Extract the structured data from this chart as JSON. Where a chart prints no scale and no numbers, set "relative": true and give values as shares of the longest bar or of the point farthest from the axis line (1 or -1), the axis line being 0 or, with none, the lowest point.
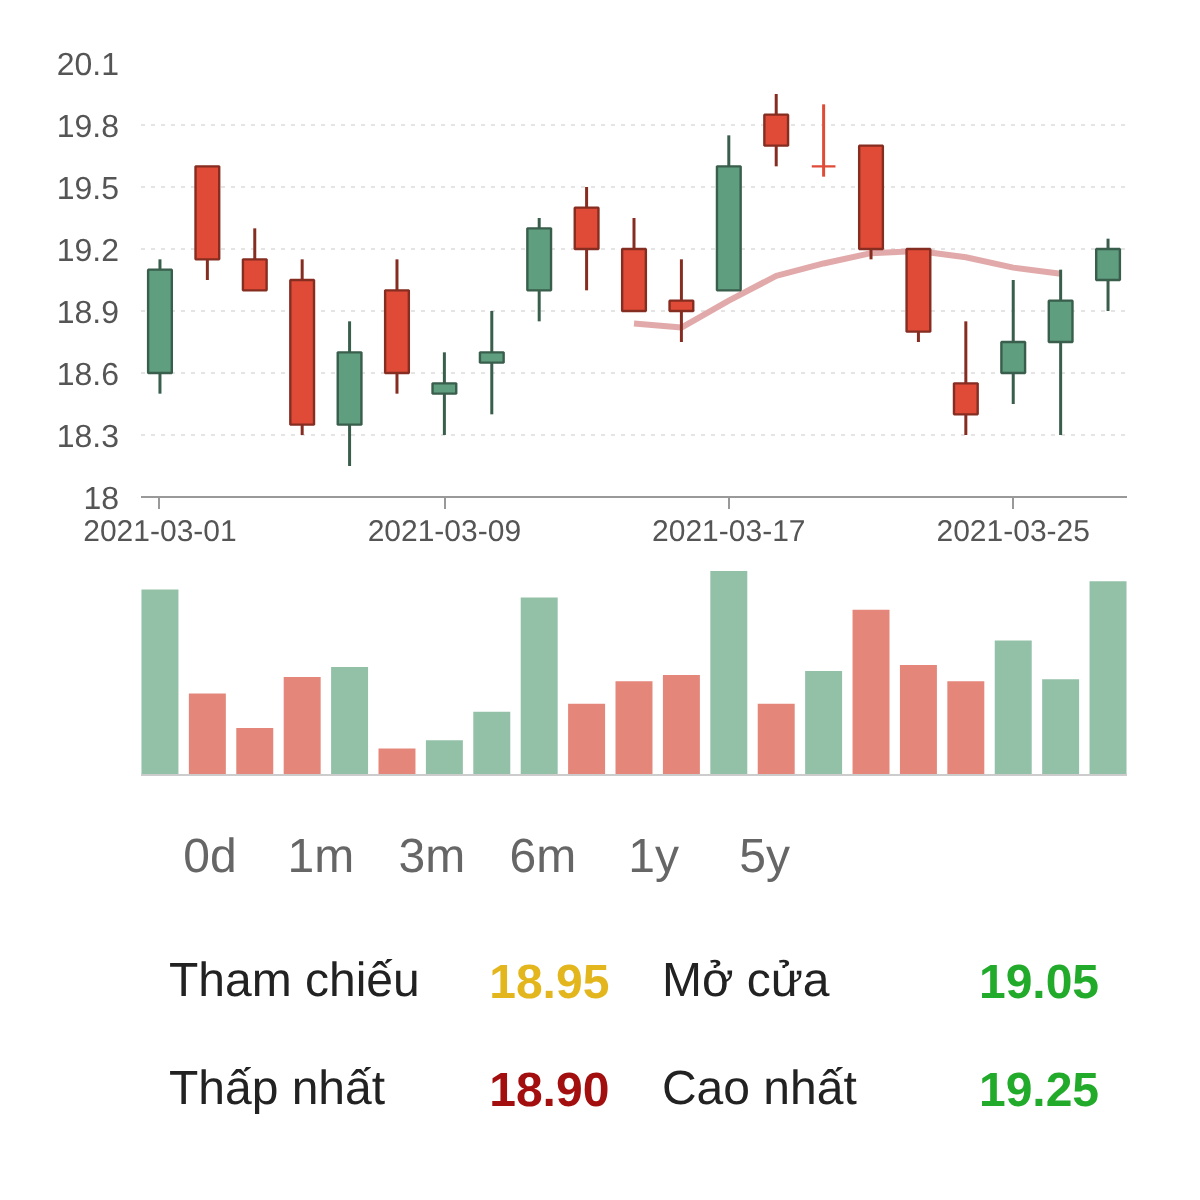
{
  "chart_data": [
    {
      "type": "candlestick",
      "categories": [
        "2021-03-01",
        null,
        null,
        null,
        null,
        null,
        "2021-03-09",
        null,
        null,
        null,
        null,
        null,
        "2021-03-17",
        null,
        null,
        null,
        null,
        null,
        "2021-03-25",
        null,
        null
      ],
      "ohlc": [
        [
          18.6,
          19.15,
          18.5,
          19.1
        ],
        [
          19.6,
          19.6,
          19.05,
          19.15
        ],
        [
          19.15,
          19.3,
          19.0,
          19.0
        ],
        [
          19.05,
          19.15,
          18.3,
          18.35
        ],
        [
          18.35,
          18.85,
          18.15,
          18.7
        ],
        [
          19.0,
          19.15,
          18.5,
          18.6
        ],
        [
          18.5,
          18.7,
          18.3,
          18.55
        ],
        [
          18.65,
          18.9,
          18.4,
          18.7
        ],
        [
          19.0,
          19.35,
          18.85,
          19.3
        ],
        [
          19.4,
          19.5,
          19.0,
          19.2
        ],
        [
          19.2,
          19.35,
          18.9,
          18.9
        ],
        [
          18.95,
          19.15,
          18.75,
          18.9
        ],
        [
          19.0,
          19.75,
          19.0,
          19.6
        ],
        [
          19.85,
          19.95,
          19.6,
          19.7
        ],
        [
          19.6,
          19.9,
          19.55,
          19.6
        ],
        [
          19.7,
          19.7,
          19.15,
          19.2
        ],
        [
          19.2,
          19.2,
          18.75,
          18.8
        ],
        [
          18.55,
          18.85,
          18.3,
          18.4
        ],
        [
          18.6,
          19.05,
          18.45,
          18.75
        ],
        [
          18.75,
          19.1,
          18.3,
          18.95
        ],
        [
          19.05,
          19.25,
          18.9,
          19.2
        ]
      ],
      "colors": [
        "#5f9e7f",
        "#e04b37",
        "#e04b37",
        "#e04b37",
        "#5f9e7f",
        "#e04b37",
        "#5f9e7f",
        "#5f9e7f",
        "#5f9e7f",
        "#e04b37",
        "#e04b37",
        "#e04b37",
        "#5f9e7f",
        "#e04b37",
        "#e04b37",
        "#e04b37",
        "#e04b37",
        "#e04b37",
        "#5f9e7f",
        "#5f9e7f",
        "#5f9e7f"
      ],
      "series": [
        {
          "type": "line",
          "color": "#dea0a0",
          "values": [
            null,
            null,
            null,
            null,
            null,
            null,
            null,
            null,
            null,
            null,
            18.84,
            18.82,
            18.95,
            19.07,
            19.13,
            19.18,
            19.19,
            19.16,
            19.11,
            19.08,
            null
          ]
        }
      ],
      "ylim": [
        18,
        20.1
      ],
      "yticks": [
        18,
        18.3,
        18.6,
        18.9,
        19.2,
        19.5,
        19.8,
        20.1
      ],
      "grid": "y"
    },
    {
      "type": "bar",
      "relative": true,
      "categories": [
        null,
        null,
        null,
        null,
        null,
        null,
        null,
        null,
        null,
        null,
        null,
        null,
        null,
        null,
        null,
        null,
        null,
        null,
        null,
        null,
        null
      ],
      "values": [
        0.91,
        0.4,
        0.23,
        0.48,
        0.53,
        0.13,
        0.17,
        0.31,
        0.87,
        0.35,
        0.46,
        0.49,
        1,
        0.35,
        0.51,
        0.81,
        0.54,
        0.46,
        0.66,
        0.47,
        0.95
      ],
      "colors": [
        "#93c1a8",
        "#e5867a",
        "#e5867a",
        "#e5867a",
        "#93c1a8",
        "#e5867a",
        "#93c1a8",
        "#93c1a8",
        "#93c1a8",
        "#e5867a",
        "#e5867a",
        "#e5867a",
        "#93c1a8",
        "#e5867a",
        "#93c1a8",
        "#e5867a",
        "#e5867a",
        "#e5867a",
        "#93c1a8",
        "#93c1a8",
        "#93c1a8"
      ]
    },
    {
      "type": "other",
      "annotations": [
        "0d",
        "1m",
        "3m",
        "6m",
        "1y",
        "5y"
      ],
      "categories": [
        "Tham chiếu",
        "Mở cửa",
        "Thấp nhất",
        "Cao nhất"
      ],
      "value_labels": [
        "18.95",
        "19.05",
        "18.90",
        "19.25"
      ],
      "colors": [
        "#e2b61c",
        "#22aa2a",
        "#a30e0e",
        "#22aa2a"
      ]
    }
  ]
}
